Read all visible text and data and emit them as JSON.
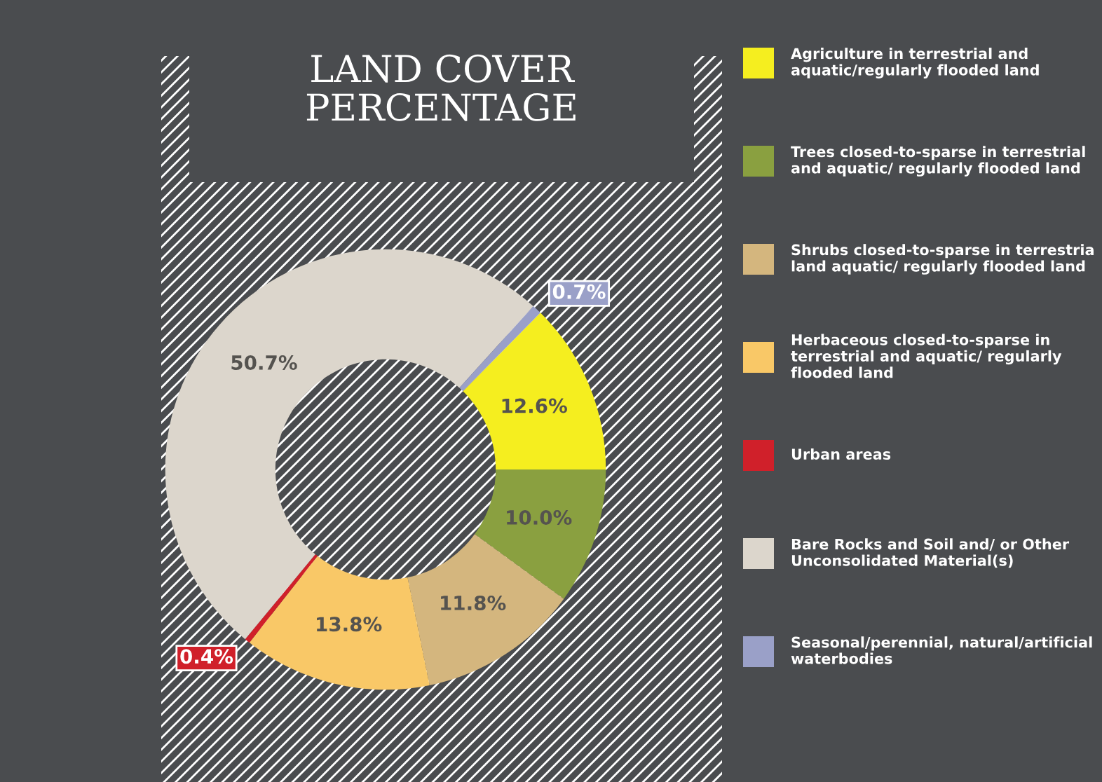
{
  "chart_data": {
    "type": "donut",
    "title": "LAND COVER\nPERCENTAGE",
    "categories": [
      "Agriculture in terrestrial and aquatic/regularly flooded land",
      "Trees closed-to-sparse in terrestrial and aquatic/ regularly flooded land",
      "Shrubs closed-to-sparse in terrestria land aquatic/ regularly flooded land",
      "Herbaceous closed-to-sparse in terrestrial and aquatic/ regularly flooded land",
      "Urban areas",
      "Bare Rocks and Soil and/ or Other Unconsolidated Material(s)",
      "Seasonal/perennial, natural/artificial waterbodies"
    ],
    "values": [
      12.6,
      10.0,
      11.8,
      13.8,
      0.4,
      50.7,
      0.7
    ],
    "colors": [
      "#f5ee1f",
      "#8aa040",
      "#d4b67e",
      "#f9c867",
      "#d0202a",
      "#dcd6cc",
      "#9aa0c8"
    ],
    "value_labels": [
      "12.6%",
      "10.0%",
      "11.8%",
      "13.8%",
      "0.4%",
      "50.7%",
      "0.7%"
    ],
    "legend": "right"
  }
}
